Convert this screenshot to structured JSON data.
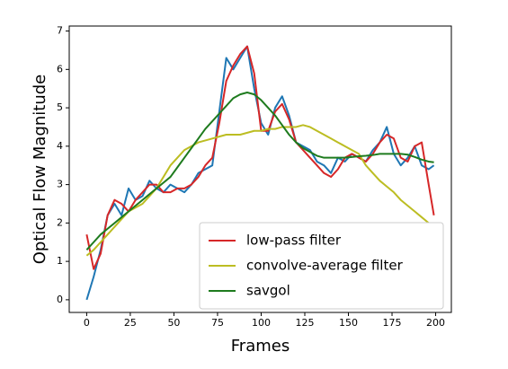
{
  "chart_data": {
    "type": "line",
    "xlabel": "Frames",
    "ylabel": "Optical Flow Magnitude",
    "x": [
      0,
      4,
      8,
      12,
      16,
      20,
      24,
      28,
      32,
      36,
      40,
      44,
      48,
      52,
      56,
      60,
      64,
      68,
      72,
      76,
      80,
      84,
      88,
      92,
      96,
      100,
      104,
      108,
      112,
      116,
      120,
      124,
      128,
      132,
      136,
      140,
      144,
      148,
      152,
      156,
      160,
      164,
      168,
      172,
      176,
      180,
      184,
      188,
      192,
      196,
      199
    ],
    "series": [
      {
        "color": "#1f77b4",
        "values": [
          0.0,
          0.6,
          1.3,
          2.2,
          2.5,
          2.2,
          2.9,
          2.6,
          2.7,
          3.1,
          2.9,
          2.8,
          3.0,
          2.9,
          2.8,
          3.0,
          3.3,
          3.4,
          3.5,
          4.9,
          6.3,
          6.0,
          6.3,
          6.6,
          5.5,
          4.6,
          4.3,
          5.0,
          5.3,
          4.8,
          4.1,
          4.0,
          3.9,
          3.6,
          3.5,
          3.3,
          3.7,
          3.6,
          3.8,
          3.7,
          3.6,
          3.9,
          4.1,
          4.5,
          3.8,
          3.5,
          3.7,
          4.0,
          3.5,
          3.4,
          3.5
        ]
      },
      {
        "name": "low-pass filter",
        "color": "#d62728",
        "values": [
          1.7,
          0.8,
          1.2,
          2.2,
          2.6,
          2.5,
          2.3,
          2.6,
          2.8,
          3.0,
          3.0,
          2.8,
          2.8,
          2.9,
          2.9,
          3.0,
          3.2,
          3.5,
          3.7,
          4.6,
          5.7,
          6.1,
          6.4,
          6.6,
          5.9,
          4.4,
          4.4,
          4.9,
          5.1,
          4.7,
          4.1,
          3.9,
          3.7,
          3.5,
          3.3,
          3.2,
          3.4,
          3.7,
          3.8,
          3.7,
          3.6,
          3.8,
          4.1,
          4.3,
          4.2,
          3.7,
          3.6,
          4.0,
          4.1,
          3.0,
          2.2
        ]
      },
      {
        "name": "convolve-average filter",
        "color": "#bcbd22",
        "values": [
          1.15,
          1.3,
          1.5,
          1.7,
          1.9,
          2.1,
          2.3,
          2.4,
          2.5,
          2.7,
          2.9,
          3.2,
          3.5,
          3.7,
          3.9,
          4.0,
          4.1,
          4.15,
          4.2,
          4.25,
          4.3,
          4.3,
          4.3,
          4.35,
          4.4,
          4.4,
          4.45,
          4.45,
          4.5,
          4.5,
          4.5,
          4.55,
          4.5,
          4.4,
          4.3,
          4.2,
          4.1,
          4.0,
          3.9,
          3.8,
          3.5,
          3.3,
          3.1,
          2.95,
          2.8,
          2.6,
          2.45,
          2.3,
          2.15,
          2.0,
          1.95
        ]
      },
      {
        "name": "savgol",
        "color": "#1e7b1e",
        "values": [
          1.3,
          1.5,
          1.7,
          1.85,
          2.0,
          2.15,
          2.3,
          2.45,
          2.6,
          2.75,
          2.9,
          3.05,
          3.2,
          3.45,
          3.7,
          3.95,
          4.2,
          4.45,
          4.65,
          4.85,
          5.05,
          5.25,
          5.35,
          5.4,
          5.35,
          5.2,
          5.0,
          4.8,
          4.55,
          4.3,
          4.1,
          3.95,
          3.85,
          3.75,
          3.7,
          3.7,
          3.7,
          3.7,
          3.72,
          3.74,
          3.75,
          3.77,
          3.8,
          3.8,
          3.8,
          3.8,
          3.78,
          3.72,
          3.65,
          3.6,
          3.58
        ]
      }
    ],
    "xlim": [
      -10,
      209
    ],
    "ylim": [
      -0.33,
      7.13
    ],
    "xticks": [
      0,
      25,
      50,
      75,
      100,
      125,
      150,
      175,
      200
    ],
    "yticks": [
      0,
      1,
      2,
      3,
      4,
      5,
      6,
      7
    ],
    "legend": "lower right"
  }
}
